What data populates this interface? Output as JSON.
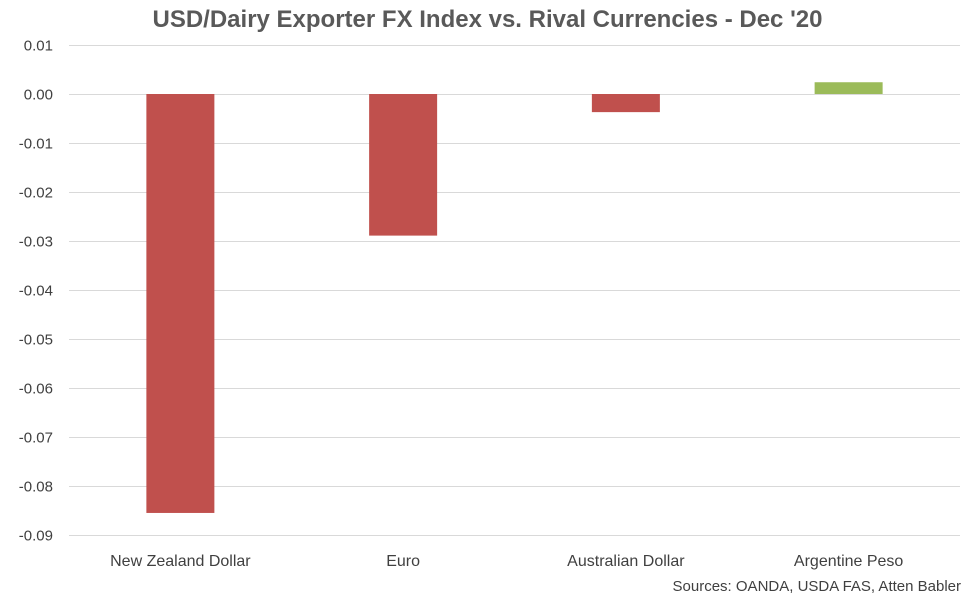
{
  "chart_data": {
    "type": "bar",
    "title": "USD/Dairy Exporter FX Index vs. Rival Currencies - Dec '20",
    "source": "Sources: OANDA, USDA FAS, Atten Babler",
    "categories": [
      "New Zealand Dollar",
      "Euro",
      "Australian Dollar",
      "Argentine Peso"
    ],
    "values": [
      -0.0855,
      -0.0289,
      -0.0037,
      0.0024
    ],
    "ylim": [
      -0.09,
      0.01
    ],
    "yticks": [
      0.01,
      0.0,
      -0.01,
      -0.02,
      -0.03,
      -0.04,
      -0.05,
      -0.06,
      -0.07,
      -0.08,
      -0.09
    ],
    "ytick_labels": [
      "0.01",
      "0.00",
      "-0.01",
      "-0.02",
      "-0.03",
      "-0.04",
      "-0.05",
      "-0.06",
      "-0.07",
      "-0.08",
      "-0.09"
    ],
    "colors": {
      "negative": "#c0504d",
      "positive": "#9bbb59",
      "grid": "#d9d9d9",
      "tick_text": "#404040"
    },
    "grid": true,
    "legend": "none"
  }
}
